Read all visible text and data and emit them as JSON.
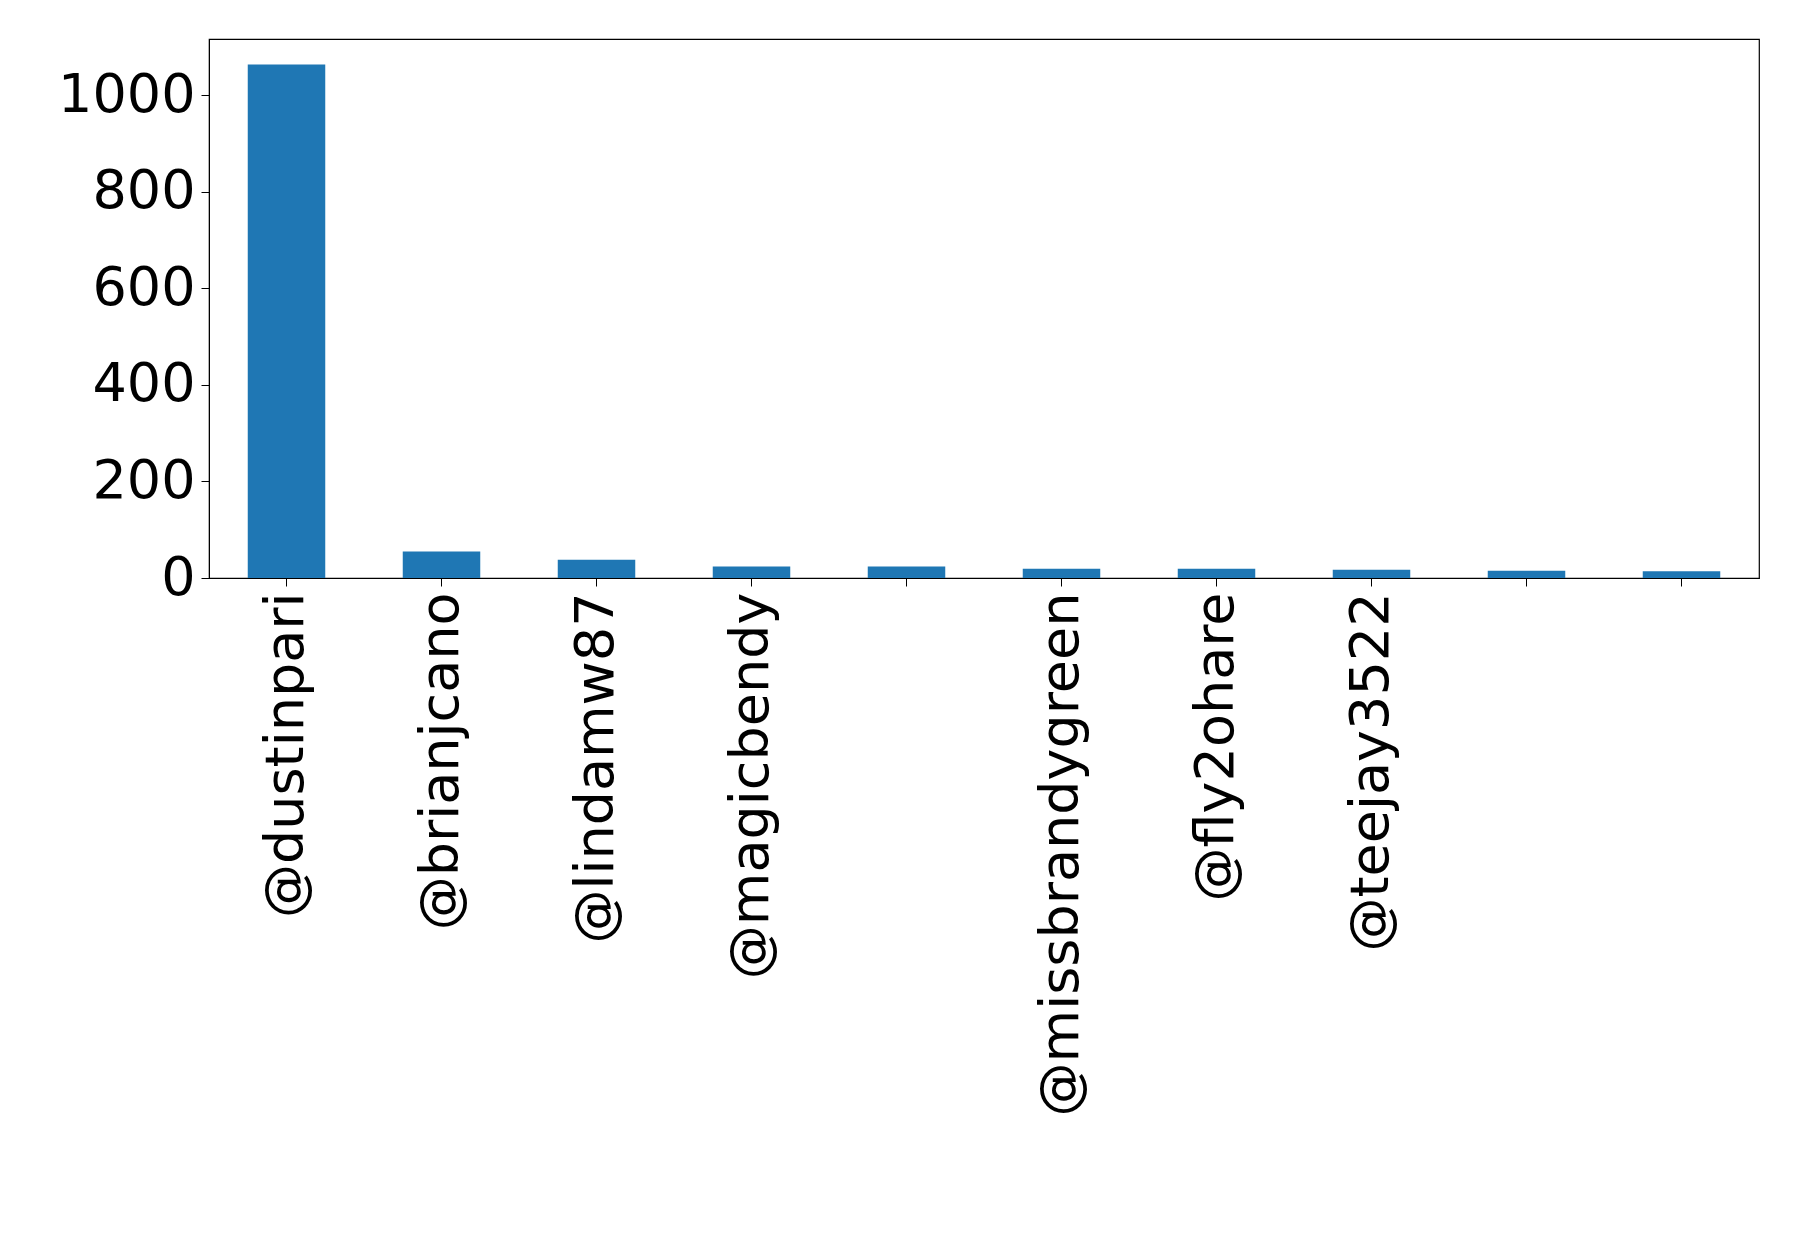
{
  "chart_data": {
    "type": "bar",
    "categories": [
      "@dustinpari",
      "@brianjcano",
      "@lindamw87",
      "@magicbendy",
      null,
      "@missbrandygreen",
      "@fly2ohare",
      "@teejay3522",
      null,
      null
    ],
    "values": [
      1064,
      55,
      38,
      24,
      24,
      19,
      19,
      17,
      15,
      14
    ],
    "color": "#1f77b4",
    "ylim": [
      0,
      1117
    ],
    "yticks": [
      0,
      200,
      400,
      600,
      800,
      1000
    ],
    "grid": false,
    "legend": false
  }
}
